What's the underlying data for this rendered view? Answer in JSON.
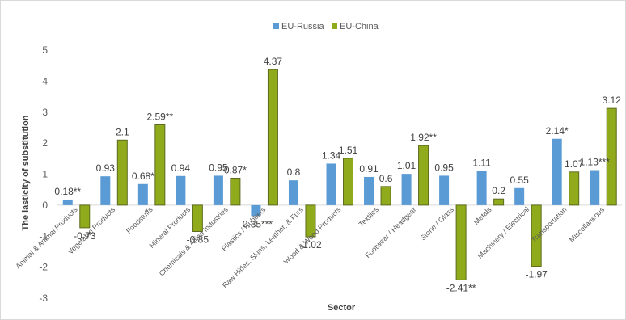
{
  "chart_data": {
    "type": "bar",
    "xlabel": "Sector",
    "ylabel": "The lasticity of substitution",
    "ylim": [
      -3,
      5
    ],
    "yticks": [
      -3,
      -2,
      -1,
      0,
      1,
      2,
      3,
      4,
      5
    ],
    "grid": false,
    "legend": "top-center",
    "categories": [
      "Animal & Animal Products",
      "Vegetable Products",
      "Foodstuffs",
      "Mineral Products",
      "Chemicals & Allied Industries",
      "Plastics / Rubbers",
      "Raw Hides, Skins, Leather, & Furs",
      "Wood & Wood Products",
      "Textiles",
      "Footwear / Headgear",
      "Stone / Glass",
      "Metals",
      "Machinery / Electrical",
      "Transportation",
      "Miscellaneous"
    ],
    "series": [
      {
        "name": "EU-Russia",
        "color": "#5b9bd5",
        "values": [
          0.18,
          0.93,
          0.68,
          0.94,
          0.95,
          -0.35,
          0.8,
          1.34,
          0.91,
          1.01,
          0.95,
          1.11,
          0.55,
          2.14,
          1.13
        ],
        "labels": [
          "0.18**",
          "0.93",
          "0.68*",
          "0.94",
          "0.95",
          "-0.35***",
          "0.8",
          "1.34",
          "0.91",
          "1.01",
          "0.95",
          "1.11",
          "0.55",
          "2.14*",
          "1.13***"
        ]
      },
      {
        "name": "EU-China",
        "color": "#8faa1b",
        "values": [
          -0.73,
          2.1,
          2.59,
          -0.85,
          0.87,
          4.37,
          -1.02,
          1.51,
          0.6,
          1.92,
          -2.41,
          0.2,
          -1.97,
          1.07,
          3.12
        ],
        "labels": [
          "-0.73",
          "2.1",
          "2.59**",
          "-0.85",
          "0.87*",
          "4.37",
          "-1.02",
          "1.51",
          "0.6",
          "1.92**",
          "-2.41**",
          "0.2",
          "-1.97",
          "1.07",
          "3.12"
        ]
      }
    ]
  }
}
